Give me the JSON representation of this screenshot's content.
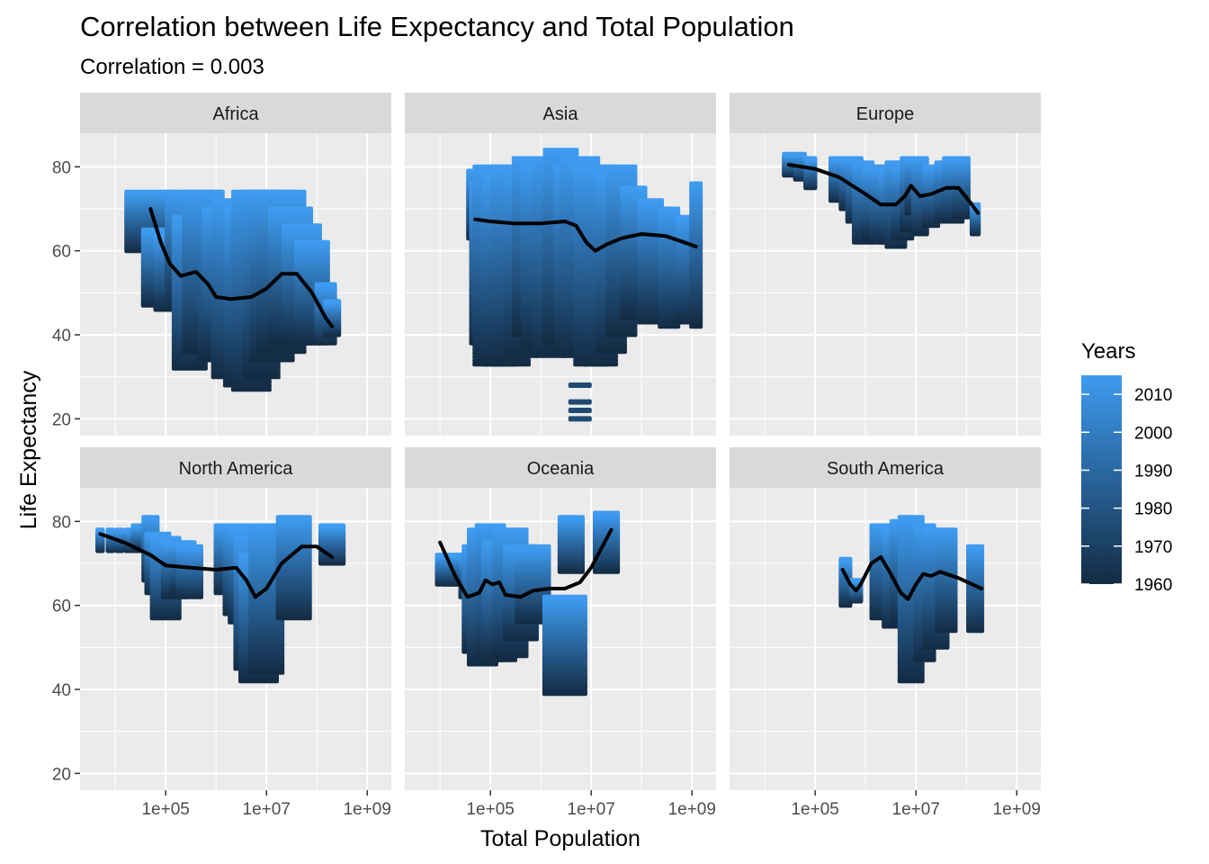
{
  "chart_data": {
    "type": "scatter",
    "title": "Correlation between Life Expectancy and Total Population",
    "subtitle": "Correlation = 0.003",
    "xlabel": "Total Population",
    "ylabel": "Life Expectancy",
    "x_scale": "log10",
    "x_ticks": [
      100000,
      10000000,
      1000000000
    ],
    "x_tick_labels": [
      "1e+05",
      "1e+07",
      "1e+09"
    ],
    "y_ticks": [
      20,
      40,
      60,
      80
    ],
    "y_tick_labels": [
      "20",
      "40",
      "60",
      "80"
    ],
    "xlim": [
      2000,
      3000000000
    ],
    "ylim": [
      16,
      88
    ],
    "grid": true,
    "legend": {
      "title": "Years",
      "position": "right",
      "type": "colorbar",
      "ticks": [
        2010,
        2000,
        1990,
        1980,
        1970,
        1960
      ],
      "range": [
        1960,
        2015
      ],
      "color_low": "#132B43",
      "color_high": "#3E9BF0"
    },
    "panels": [
      {
        "name": "Africa",
        "clusters": [
          [
            50000,
            58,
            60,
            74
          ],
          [
            80000,
            44,
            47,
            65
          ],
          [
            130000,
            40,
            46,
            64
          ],
          [
            200000,
            36,
            46,
            74
          ],
          [
            300000,
            40,
            32,
            68
          ],
          [
            500000,
            42,
            36,
            74
          ],
          [
            800000,
            30,
            34,
            74
          ],
          [
            1300000,
            45,
            34,
            70
          ],
          [
            2000000,
            45,
            30,
            72
          ],
          [
            3000000,
            38,
            28,
            70
          ],
          [
            5000000,
            45,
            27,
            74
          ],
          [
            8000000,
            42,
            30,
            74
          ],
          [
            13000000,
            50,
            34,
            74
          ],
          [
            20000000,
            55,
            36,
            74
          ],
          [
            30000000,
            50,
            38,
            70
          ],
          [
            50000000,
            45,
            38,
            66
          ],
          [
            80000000,
            40,
            38,
            62
          ],
          [
            150000000,
            25,
            38,
            52
          ],
          [
            200000000,
            20,
            40,
            48
          ]
        ],
        "smooth": [
          [
            50000,
            70
          ],
          [
            80000,
            62
          ],
          [
            120000,
            57
          ],
          [
            200000,
            54
          ],
          [
            400000,
            55
          ],
          [
            700000,
            52
          ],
          [
            1000000,
            49
          ],
          [
            2000000,
            48.5
          ],
          [
            5000000,
            49
          ],
          [
            10000000,
            51
          ],
          [
            20000000,
            54.5
          ],
          [
            40000000,
            54.5
          ],
          [
            80000000,
            50
          ],
          [
            150000000,
            44
          ],
          [
            200000000,
            42
          ]
        ]
      },
      {
        "name": "Asia",
        "clusters": [
          [
            50000,
            20,
            63,
            79
          ],
          [
            70000,
            30,
            38,
            76
          ],
          [
            100000,
            40,
            33,
            80
          ],
          [
            150000,
            40,
            33,
            78
          ],
          [
            250000,
            45,
            33,
            80
          ],
          [
            400000,
            40,
            35,
            79
          ],
          [
            600000,
            40,
            40,
            82
          ],
          [
            1000000,
            45,
            37,
            80
          ],
          [
            1500000,
            40,
            35,
            82
          ],
          [
            2500000,
            40,
            38,
            84
          ],
          [
            4000000,
            40,
            36,
            80
          ],
          [
            6000000,
            45,
            35,
            82
          ],
          [
            10000000,
            40,
            33,
            80
          ],
          [
            15000000,
            40,
            33,
            80
          ],
          [
            25000000,
            35,
            36,
            78
          ],
          [
            40000000,
            35,
            40,
            80
          ],
          [
            70000000,
            30,
            44,
            75
          ],
          [
            150000000,
            30,
            43,
            72
          ],
          [
            350000000,
            25,
            42,
            70
          ],
          [
            700000000,
            20,
            43,
            68
          ],
          [
            1200000000,
            15,
            42,
            76
          ]
        ],
        "singles": [
          [
            6000000,
            28
          ],
          [
            6000000,
            24
          ],
          [
            6000000,
            22
          ],
          [
            6000000,
            20
          ]
        ],
        "smooth": [
          [
            50000,
            67.5
          ],
          [
            100000,
            67
          ],
          [
            300000,
            66.5
          ],
          [
            1000000,
            66.5
          ],
          [
            3000000,
            67
          ],
          [
            5000000,
            66
          ],
          [
            8000000,
            62
          ],
          [
            12000000,
            60
          ],
          [
            20000000,
            61.5
          ],
          [
            40000000,
            63
          ],
          [
            100000000,
            64
          ],
          [
            300000000,
            63.5
          ],
          [
            700000000,
            62
          ],
          [
            1200000000,
            61
          ]
        ]
      },
      {
        "name": "Europe",
        "clusters": [
          [
            30000,
            15,
            78,
            83
          ],
          [
            50000,
            15,
            77,
            83
          ],
          [
            80000,
            15,
            75,
            82
          ],
          [
            250000,
            15,
            72,
            82
          ],
          [
            400000,
            15,
            70,
            82
          ],
          [
            600000,
            20,
            67,
            82
          ],
          [
            900000,
            25,
            62,
            81
          ],
          [
            1400000,
            25,
            63,
            80
          ],
          [
            2000000,
            25,
            62,
            80
          ],
          [
            3000000,
            25,
            62,
            79
          ],
          [
            4000000,
            25,
            61,
            81
          ],
          [
            5500000,
            25,
            63,
            80
          ],
          [
            8000000,
            25,
            65,
            82
          ],
          [
            10000000,
            25,
            69,
            82
          ],
          [
            12000000,
            20,
            64,
            82
          ],
          [
            20000000,
            20,
            66,
            80
          ],
          [
            35000000,
            20,
            67,
            81
          ],
          [
            55000000,
            25,
            67,
            82
          ],
          [
            80000000,
            20,
            68,
            82
          ],
          [
            150000000,
            12,
            64,
            71
          ]
        ],
        "smooth": [
          [
            30000,
            80.5
          ],
          [
            100000,
            79.5
          ],
          [
            300000,
            77.5
          ],
          [
            1000000,
            73.5
          ],
          [
            2000000,
            71
          ],
          [
            4000000,
            71
          ],
          [
            6000000,
            73
          ],
          [
            8000000,
            75.5
          ],
          [
            12000000,
            73
          ],
          [
            20000000,
            73.5
          ],
          [
            40000000,
            75
          ],
          [
            70000000,
            75
          ],
          [
            120000000,
            71.5
          ],
          [
            170000000,
            69
          ]
        ]
      },
      {
        "name": "North America",
        "clusters": [
          [
            5000,
            10,
            73,
            78
          ],
          [
            8000,
            10,
            73,
            78
          ],
          [
            12000,
            10,
            73,
            78
          ],
          [
            18000,
            10,
            73,
            78
          ],
          [
            25000,
            10,
            73,
            79
          ],
          [
            35000,
            10,
            73,
            79
          ],
          [
            50000,
            20,
            66,
            81
          ],
          [
            70000,
            30,
            63,
            77
          ],
          [
            100000,
            35,
            57,
            76
          ],
          [
            150000,
            30,
            62,
            75
          ],
          [
            220000,
            30,
            63,
            75
          ],
          [
            300000,
            30,
            62,
            74
          ],
          [
            1500000,
            25,
            63,
            79
          ],
          [
            2500000,
            30,
            58,
            79
          ],
          [
            3500000,
            35,
            56,
            78
          ],
          [
            5000000,
            40,
            45,
            76
          ],
          [
            7000000,
            45,
            42,
            72
          ],
          [
            10000000,
            40,
            44,
            79
          ],
          [
            35000000,
            40,
            57,
            81
          ],
          [
            200000000,
            30,
            70,
            79
          ]
        ],
        "smooth": [
          [
            5000,
            77
          ],
          [
            15000,
            75
          ],
          [
            50000,
            72
          ],
          [
            100000,
            69.5
          ],
          [
            300000,
            69
          ],
          [
            1000000,
            68.5
          ],
          [
            2500000,
            69
          ],
          [
            4000000,
            66
          ],
          [
            6000000,
            62
          ],
          [
            10000000,
            64
          ],
          [
            20000000,
            70
          ],
          [
            50000000,
            74
          ],
          [
            100000000,
            74
          ],
          [
            200000000,
            71.5
          ]
        ]
      },
      {
        "name": "Oceania",
        "clusters": [
          [
            12000,
            20,
            65,
            72
          ],
          [
            18000,
            20,
            65,
            72
          ],
          [
            25000,
            20,
            65,
            72
          ],
          [
            35000,
            20,
            62,
            72
          ],
          [
            50000,
            30,
            49,
            74
          ],
          [
            70000,
            35,
            46,
            78
          ],
          [
            100000,
            35,
            47,
            79
          ],
          [
            150000,
            40,
            47,
            75
          ],
          [
            250000,
            40,
            48,
            78
          ],
          [
            400000,
            40,
            52,
            74
          ],
          [
            700000,
            40,
            56,
            74
          ],
          [
            3000000,
            50,
            39,
            62
          ],
          [
            4000000,
            30,
            68,
            81
          ],
          [
            20000000,
            30,
            68,
            82
          ]
        ],
        "smooth": [
          [
            10000,
            75
          ],
          [
            20000,
            67
          ],
          [
            35000,
            62
          ],
          [
            60000,
            63
          ],
          [
            80000,
            66
          ],
          [
            110000,
            65
          ],
          [
            150000,
            65.5
          ],
          [
            200000,
            62.5
          ],
          [
            400000,
            62
          ],
          [
            700000,
            63.5
          ],
          [
            1500000,
            64
          ],
          [
            3000000,
            64
          ],
          [
            6000000,
            65.5
          ],
          [
            10000000,
            69
          ],
          [
            25000000,
            78
          ]
        ]
      },
      {
        "name": "South America",
        "clusters": [
          [
            400000,
            15,
            60,
            71
          ],
          [
            650000,
            15,
            61,
            66
          ],
          [
            2000000,
            25,
            57,
            79
          ],
          [
            3500000,
            25,
            55,
            78
          ],
          [
            5000000,
            25,
            56,
            80
          ],
          [
            8000000,
            30,
            42,
            81
          ],
          [
            15000000,
            25,
            47,
            79
          ],
          [
            25000000,
            30,
            50,
            78
          ],
          [
            40000000,
            25,
            54,
            78
          ],
          [
            150000000,
            20,
            54,
            74
          ]
        ],
        "smooth": [
          [
            350000,
            68.5
          ],
          [
            500000,
            65
          ],
          [
            650000,
            63.5
          ],
          [
            800000,
            65
          ],
          [
            1300000,
            70
          ],
          [
            2000000,
            71.5
          ],
          [
            3000000,
            68
          ],
          [
            5000000,
            63
          ],
          [
            7000000,
            61.5
          ],
          [
            10000000,
            65
          ],
          [
            14000000,
            67.5
          ],
          [
            20000000,
            67
          ],
          [
            30000000,
            68
          ],
          [
            70000000,
            66.5
          ],
          [
            200000000,
            64
          ]
        ]
      }
    ]
  }
}
